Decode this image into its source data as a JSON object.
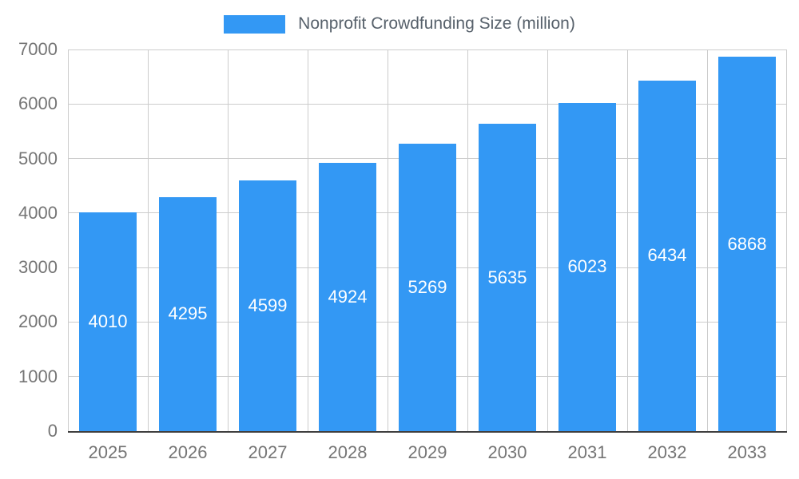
{
  "chart_data": {
    "type": "bar",
    "title": "",
    "categories": [
      "2025",
      "2026",
      "2027",
      "2028",
      "2029",
      "2030",
      "2031",
      "2032",
      "2033"
    ],
    "series": [
      {
        "name": "Nonprofit Crowdfunding Size (million)",
        "values": [
          4010,
          4295,
          4599,
          4924,
          5269,
          5635,
          6023,
          6434,
          6868
        ]
      }
    ],
    "ylim": [
      0,
      7000
    ],
    "ytick_step": 1000,
    "yticks": [
      0,
      1000,
      2000,
      3000,
      4000,
      5000,
      6000,
      7000
    ],
    "grid": true,
    "legend_position": "top",
    "bar_color": "#3398f4",
    "value_label_color": "#ffffff",
    "axis_label_color": "#757575",
    "gridline_color": "#cccccc",
    "baseline_color": "#3f3f3f",
    "legend_text_color": "#57616b"
  }
}
